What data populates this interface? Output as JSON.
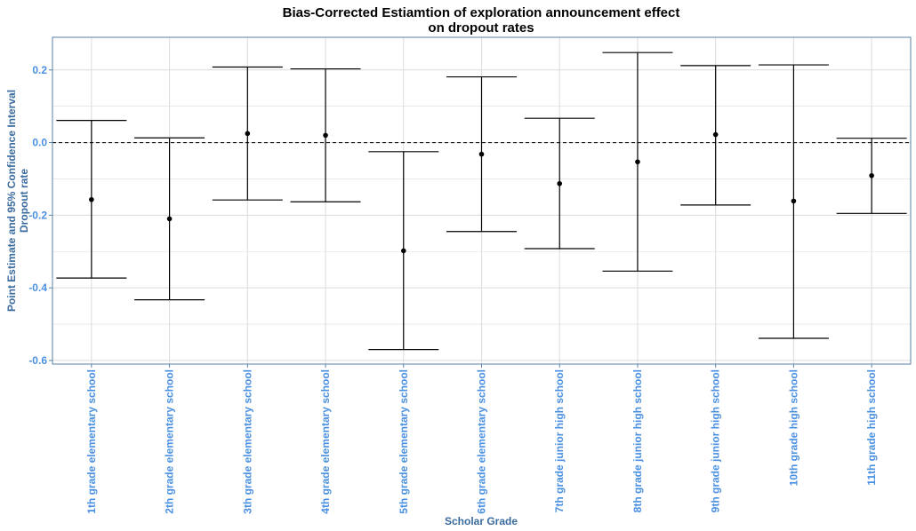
{
  "colors": {
    "axis_title": "#3a6b9e",
    "tick_label": "#4a90e2",
    "grid": "#dcdcdc",
    "panel_border": "#5a82a8",
    "marks": "#000000"
  },
  "chart_data": {
    "type": "errorbar",
    "title_line1": "Bias-Corrected Estiamtion of exploration announcement effect",
    "title_line2": "on dropout rates",
    "xlabel": "Scholar Grade",
    "ylabel_line1": "Point Estimate and 95% Confidence Interval",
    "ylabel_line2": "Dropout rate",
    "ylim": [
      -0.61,
      0.29
    ],
    "yticks": [
      0.2,
      0.0,
      -0.2,
      -0.4,
      -0.6
    ],
    "ytick_labels": [
      "0.2",
      "0.0",
      "-0.2",
      "-0.4",
      "-0.6"
    ],
    "reference_line": 0.0,
    "grid": true,
    "categories": [
      "1th grade elementary school",
      "2th grade elementary school",
      "3th grade elementary school",
      "4th grade elementary school",
      "5th grade elementary school",
      "6th grade elementary school",
      "7th grade junior high school",
      "8th grade junior high school",
      "9th grade junior high school",
      "10th grade high school",
      "11th grade high school"
    ],
    "estimate": [
      -0.157,
      -0.21,
      0.025,
      0.02,
      -0.298,
      -0.032,
      -0.113,
      -0.053,
      0.022,
      -0.161,
      -0.091
    ],
    "lower": [
      -0.373,
      -0.433,
      -0.158,
      -0.163,
      -0.57,
      -0.245,
      -0.292,
      -0.354,
      -0.172,
      -0.539,
      -0.195
    ],
    "upper": [
      0.061,
      0.013,
      0.208,
      0.203,
      -0.025,
      0.181,
      0.067,
      0.248,
      0.212,
      0.214,
      0.012
    ]
  }
}
